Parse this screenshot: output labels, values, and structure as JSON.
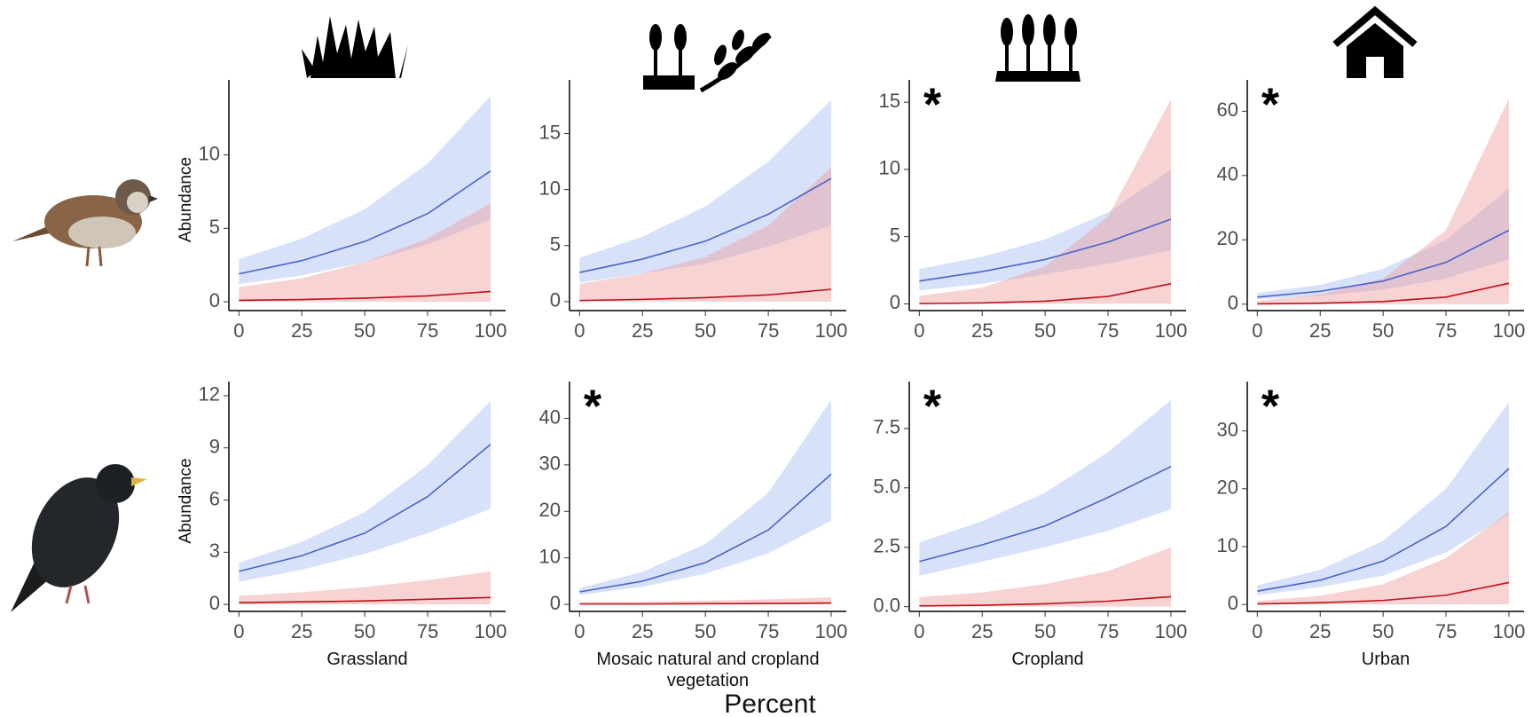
{
  "figure": {
    "xlabel": "Percent"
  },
  "chart_data": [
    {
      "type": "line",
      "ylabel": "Abundance",
      "x": [
        0,
        25,
        50,
        75,
        100
      ],
      "xlim": [
        -4,
        106
      ],
      "xticks": [
        0,
        25,
        50,
        75,
        100
      ],
      "ylim": [
        -0.6,
        14.5
      ],
      "yticks": [
        0,
        5,
        10
      ],
      "grid": false,
      "series": [
        {
          "color": "#4a64c8",
          "band_color": "#a9bcf3",
          "values": [
            1.9,
            2.8,
            4.1,
            6.0,
            8.9
          ],
          "lower": [
            1.2,
            1.8,
            2.7,
            3.9,
            5.6
          ],
          "upper": [
            2.9,
            4.3,
            6.3,
            9.4,
            14.0
          ]
        },
        {
          "color": "#c0101a",
          "band_color": "#ee9e9e",
          "values": [
            0.1,
            0.15,
            0.25,
            0.4,
            0.7
          ],
          "lower": [
            0,
            0,
            0,
            0,
            0
          ],
          "upper": [
            1.0,
            1.6,
            2.7,
            4.3,
            6.7
          ]
        }
      ]
    },
    {
      "type": "line",
      "x": [
        0,
        25,
        50,
        75,
        100
      ],
      "xlim": [
        -4,
        106
      ],
      "xticks": [
        0,
        25,
        50,
        75,
        100
      ],
      "ylim": [
        -0.8,
        19
      ],
      "yticks": [
        0,
        5,
        10,
        15
      ],
      "grid": false,
      "series": [
        {
          "color": "#4a64c8",
          "band_color": "#a9bcf3",
          "values": [
            2.6,
            3.8,
            5.4,
            7.8,
            11.0
          ],
          "lower": [
            1.7,
            2.5,
            3.4,
            4.9,
            6.8
          ],
          "upper": [
            3.9,
            5.8,
            8.5,
            12.5,
            18.0
          ]
        },
        {
          "color": "#c0101a",
          "band_color": "#ee9e9e",
          "values": [
            0.1,
            0.2,
            0.35,
            0.6,
            1.1
          ],
          "lower": [
            0,
            0,
            0,
            0,
            0
          ],
          "upper": [
            1.6,
            2.5,
            4.0,
            6.8,
            12.0
          ]
        }
      ]
    },
    {
      "type": "line",
      "annotation": "*",
      "x": [
        0,
        25,
        50,
        75,
        100
      ],
      "xlim": [
        -4,
        106
      ],
      "xticks": [
        0,
        25,
        50,
        75,
        100
      ],
      "ylim": [
        -0.5,
        16
      ],
      "yticks": [
        0,
        5,
        10,
        15
      ],
      "grid": false,
      "series": [
        {
          "color": "#4a64c8",
          "band_color": "#a9bcf3",
          "values": [
            1.7,
            2.4,
            3.3,
            4.6,
            6.3
          ],
          "lower": [
            1.0,
            1.5,
            2.2,
            3.0,
            4.0
          ],
          "upper": [
            2.6,
            3.5,
            4.8,
            6.8,
            10.0
          ]
        },
        {
          "color": "#c0101a",
          "band_color": "#ee9e9e",
          "values": [
            0.02,
            0.07,
            0.2,
            0.55,
            1.5
          ],
          "lower": [
            0,
            0,
            0,
            0,
            0
          ],
          "upper": [
            0.6,
            1.2,
            2.8,
            6.5,
            15.2
          ]
        }
      ]
    },
    {
      "type": "line",
      "annotation": "*",
      "x": [
        0,
        25,
        50,
        75,
        100
      ],
      "xlim": [
        -4,
        106
      ],
      "xticks": [
        0,
        25,
        50,
        75,
        100
      ],
      "ylim": [
        -2,
        67
      ],
      "yticks": [
        0,
        20,
        40,
        60
      ],
      "grid": false,
      "series": [
        {
          "color": "#4a64c8",
          "band_color": "#a9bcf3",
          "values": [
            2.2,
            4.0,
            7.2,
            13.0,
            23.0
          ],
          "lower": [
            1.5,
            2.6,
            4.5,
            8.0,
            14.0
          ],
          "upper": [
            3.5,
            6.0,
            11.0,
            20.0,
            36.0
          ]
        },
        {
          "color": "#c0101a",
          "band_color": "#ee9e9e",
          "values": [
            0.1,
            0.3,
            0.8,
            2.2,
            6.5
          ],
          "lower": [
            0,
            0,
            0,
            0,
            0
          ],
          "upper": [
            1.0,
            3.0,
            8.0,
            23.0,
            64.0
          ]
        }
      ]
    },
    {
      "type": "line",
      "ylabel": "Abundance",
      "xlabel": "Grassland",
      "x": [
        0,
        25,
        50,
        75,
        100
      ],
      "xlim": [
        -4,
        106
      ],
      "xticks": [
        0,
        25,
        50,
        75,
        100
      ],
      "ylim": [
        -0.4,
        12.3
      ],
      "yticks": [
        0,
        3,
        6,
        9,
        12
      ],
      "grid": false,
      "series": [
        {
          "color": "#4a64c8",
          "band_color": "#a9bcf3",
          "values": [
            1.9,
            2.8,
            4.1,
            6.2,
            9.2
          ],
          "lower": [
            1.3,
            2.0,
            2.9,
            4.1,
            5.5
          ],
          "upper": [
            2.4,
            3.6,
            5.3,
            8.0,
            11.7
          ]
        },
        {
          "color": "#c0101a",
          "band_color": "#ee9e9e",
          "values": [
            0.1,
            0.15,
            0.2,
            0.3,
            0.4
          ],
          "lower": [
            0,
            0,
            0,
            0,
            0
          ],
          "upper": [
            0.5,
            0.7,
            1.0,
            1.4,
            1.9
          ]
        }
      ]
    },
    {
      "type": "line",
      "annotation": "*",
      "xlabel": "Mosaic natural and cropland vegetation",
      "x": [
        0,
        25,
        50,
        75,
        100
      ],
      "xlim": [
        -4,
        106
      ],
      "xticks": [
        0,
        25,
        50,
        75,
        100
      ],
      "ylim": [
        -1.5,
        46
      ],
      "yticks": [
        0,
        10,
        20,
        30,
        40
      ],
      "grid": false,
      "series": [
        {
          "color": "#4a64c8",
          "band_color": "#a9bcf3",
          "values": [
            2.7,
            5.0,
            9.0,
            16.0,
            28.0
          ],
          "lower": [
            2.0,
            3.8,
            6.6,
            11.0,
            18.0
          ],
          "upper": [
            3.5,
            7.0,
            13.0,
            24.0,
            44.0
          ]
        },
        {
          "color": "#c0101a",
          "band_color": "#ee9e9e",
          "values": [
            0.1,
            0.1,
            0.15,
            0.2,
            0.3
          ],
          "lower": [
            0,
            0,
            0,
            0,
            0
          ],
          "upper": [
            0.5,
            0.6,
            0.8,
            1.1,
            1.5
          ]
        }
      ]
    },
    {
      "type": "line",
      "annotation": "*",
      "xlabel": "Cropland",
      "x": [
        0,
        25,
        50,
        75,
        100
      ],
      "xlim": [
        -4,
        106
      ],
      "xticks": [
        0,
        25,
        50,
        75,
        100
      ],
      "ylim": [
        -0.2,
        9.1
      ],
      "yticks": [
        {
          "value": 0,
          "label": "0.0"
        },
        2.5,
        {
          "value": 5,
          "label": "5.0"
        },
        7.5
      ],
      "grid": false,
      "series": [
        {
          "color": "#4a64c8",
          "band_color": "#a9bcf3",
          "values": [
            1.9,
            2.6,
            3.4,
            4.6,
            5.9
          ],
          "lower": [
            1.3,
            1.9,
            2.5,
            3.2,
            4.1
          ],
          "upper": [
            2.7,
            3.6,
            4.8,
            6.5,
            8.7
          ]
        },
        {
          "color": "#c0101a",
          "band_color": "#ee9e9e",
          "values": [
            0.03,
            0.06,
            0.12,
            0.23,
            0.42
          ],
          "lower": [
            0,
            0,
            0,
            0,
            0
          ],
          "upper": [
            0.4,
            0.6,
            0.95,
            1.5,
            2.5
          ]
        }
      ]
    },
    {
      "type": "line",
      "annotation": "*",
      "xlabel": "Urban",
      "x": [
        0,
        25,
        50,
        75,
        100
      ],
      "xlim": [
        -4,
        106
      ],
      "xticks": [
        0,
        25,
        50,
        75,
        100
      ],
      "ylim": [
        -1.2,
        37
      ],
      "yticks": [
        0,
        10,
        20,
        30
      ],
      "grid": false,
      "series": [
        {
          "color": "#4a64c8",
          "band_color": "#a9bcf3",
          "values": [
            2.3,
            4.2,
            7.5,
            13.5,
            23.5
          ],
          "lower": [
            1.6,
            3.0,
            5.0,
            9.0,
            15.5
          ],
          "upper": [
            3.3,
            6.0,
            11.0,
            20.0,
            35.0
          ]
        },
        {
          "color": "#c0101a",
          "band_color": "#ee9e9e",
          "values": [
            0.1,
            0.3,
            0.7,
            1.6,
            3.8
          ],
          "lower": [
            0,
            0,
            0,
            0,
            0
          ],
          "upper": [
            0.6,
            1.5,
            3.5,
            8.0,
            16.0
          ]
        }
      ]
    }
  ]
}
